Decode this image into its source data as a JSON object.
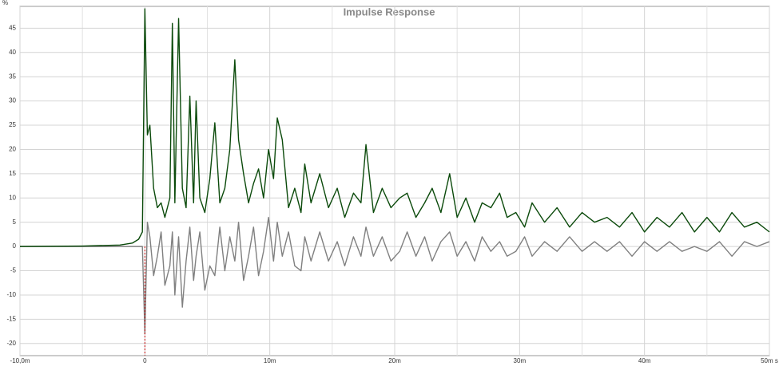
{
  "chart_data": {
    "type": "line",
    "title": "Impulse Response",
    "y_unit": "%",
    "x": [
      -10,
      -5,
      -2,
      -1,
      -0.5,
      -0.2,
      0,
      0.2,
      0.4,
      0.7,
      1.0,
      1.3,
      1.6,
      2.0,
      2.2,
      2.4,
      2.7,
      3.0,
      3.3,
      3.6,
      3.9,
      4.1,
      4.4,
      4.8,
      5.2,
      5.6,
      6.0,
      6.4,
      6.8,
      7.2,
      7.5,
      7.9,
      8.3,
      8.7,
      9.1,
      9.5,
      9.9,
      10.3,
      10.6,
      11.0,
      11.5,
      12.0,
      12.5,
      12.8,
      13.3,
      14.0,
      14.7,
      15.4,
      16.0,
      16.7,
      17.3,
      17.7,
      18.3,
      19.0,
      19.7,
      20.4,
      21.0,
      21.7,
      22.4,
      23.0,
      23.7,
      24.4,
      25.0,
      25.7,
      26.4,
      27.0,
      27.7,
      28.4,
      29.0,
      29.7,
      30.4,
      31.0,
      32,
      33,
      34,
      35,
      36,
      37,
      38,
      39,
      40,
      41,
      42,
      43,
      44,
      45,
      46,
      47,
      48,
      49,
      50
    ],
    "series": [
      {
        "color": "#0b4a0b",
        "values": [
          0,
          0.1,
          0.3,
          0.7,
          1.5,
          3,
          49,
          23,
          25,
          12,
          8,
          9,
          6,
          10,
          46,
          9,
          47,
          12,
          8,
          31,
          9,
          30,
          10,
          7,
          14,
          25.5,
          9,
          12,
          20,
          38.5,
          22,
          15,
          9,
          13,
          16,
          10,
          20,
          14,
          26.5,
          22,
          8,
          12,
          7,
          17,
          9,
          15,
          8,
          12,
          6,
          11,
          9,
          21,
          7,
          12,
          8,
          10,
          11,
          6,
          9,
          12,
          7,
          15,
          6,
          10,
          5,
          9,
          8,
          11,
          6,
          7,
          4,
          9,
          5,
          8,
          4,
          7,
          5,
          6,
          4,
          7,
          3,
          6,
          4,
          7,
          3,
          6,
          3,
          7,
          4,
          5,
          3
        ]
      },
      {
        "color": "#808080",
        "values": [
          0,
          0,
          0,
          0,
          0,
          0,
          -18,
          5,
          2,
          -6,
          -2,
          3,
          -8,
          -4,
          3,
          -10,
          2,
          -12.5,
          -3,
          4,
          -7,
          -2,
          3,
          -9,
          -4,
          -6,
          4,
          -5,
          2,
          -3,
          5,
          -7,
          -2,
          4,
          -6,
          -1,
          6,
          -3,
          5,
          -2,
          3,
          -4,
          -5,
          2,
          -3,
          3,
          -3,
          1,
          -4,
          2,
          -2,
          4,
          -2,
          2,
          -3,
          -1,
          3,
          -2,
          2,
          -3,
          1,
          3,
          -2,
          1,
          -3,
          2,
          -1,
          1,
          -2,
          -1,
          2,
          -2,
          1,
          -1,
          2,
          -1,
          1,
          -1,
          1,
          -2,
          1,
          -1,
          1,
          -1,
          0,
          -1,
          1,
          -2,
          1,
          0,
          1
        ]
      }
    ],
    "xlim": [
      -10,
      50
    ],
    "ylim": [
      -22.5,
      49.5
    ],
    "xticks": [
      {
        "value": -10,
        "label": "-10,0m"
      },
      0,
      {
        "value": 10,
        "label": "10m"
      },
      {
        "value": 20,
        "label": "20m"
      },
      {
        "value": 30,
        "label": "30m"
      },
      {
        "value": 40,
        "label": "40m"
      },
      {
        "value": 50,
        "label": "50m s"
      }
    ],
    "x_minor_grid": [
      -5,
      5,
      15,
      25,
      35,
      45
    ],
    "yticks": [
      -20,
      -15,
      -10,
      -5,
      0,
      5,
      10,
      15,
      20,
      25,
      30,
      35,
      40,
      45
    ],
    "grid": true,
    "marker_x": 0,
    "marker_color": "#cc0000"
  }
}
